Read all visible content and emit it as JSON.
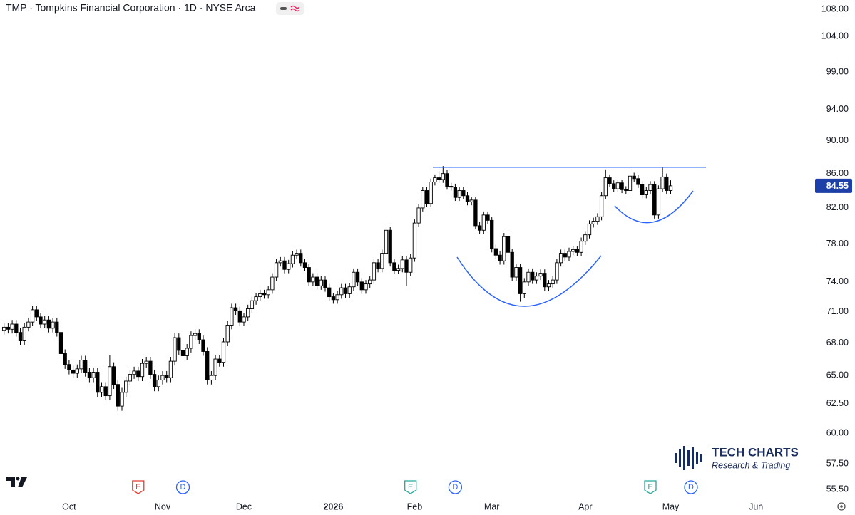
{
  "chart_data": {
    "type": "candlestick",
    "title": "TMP · Tompkins Financial Corporation · 1D · NYSE Arca",
    "log_scale": true,
    "ylim": [
      54.8,
      109.4
    ],
    "yticks": [
      {
        "value": 55.5,
        "label": "55.50"
      },
      {
        "value": 57.5,
        "label": "57.50"
      },
      {
        "value": 60,
        "label": "60.00"
      },
      {
        "value": 62.5,
        "label": "62.50"
      },
      {
        "value": 65,
        "label": "65.00"
      },
      {
        "value": 68,
        "label": "68.00"
      },
      {
        "value": 71,
        "label": "71.00"
      },
      {
        "value": 74,
        "label": "74.00"
      },
      {
        "value": 78,
        "label": "78.00"
      },
      {
        "value": 82,
        "label": "82.00"
      },
      {
        "value": 86,
        "label": "86.00"
      },
      {
        "value": 90,
        "label": "90.00"
      },
      {
        "value": 94,
        "label": "94.00"
      },
      {
        "value": 99,
        "label": "99.00"
      },
      {
        "value": 104,
        "label": "104.00"
      },
      {
        "value": 108,
        "label": "108.00"
      }
    ],
    "xlim": [
      -1,
      199
    ],
    "xticks": [
      {
        "value": 16,
        "label": "Oct"
      },
      {
        "value": 39,
        "label": "Nov"
      },
      {
        "value": 59,
        "label": "Dec"
      },
      {
        "value": 81,
        "label": "2026"
      },
      {
        "value": 101,
        "label": "Feb"
      },
      {
        "value": 120,
        "label": "Mar"
      },
      {
        "value": 143,
        "label": "Apr"
      },
      {
        "value": 164,
        "label": "May"
      },
      {
        "value": 185,
        "label": "Jun"
      }
    ],
    "up_color": "#ffffff",
    "down_color": "#000000",
    "open": [
      69.2,
      69.5,
      69.3,
      69.8,
      69.0,
      68.2,
      69.5,
      70.0,
      71.2,
      70.5,
      69.8,
      70.2,
      69.4,
      70.0,
      69.0,
      67.0,
      66.0,
      65.5,
      65.2,
      65.6,
      66.4,
      65.3,
      64.8,
      65.3,
      63.5,
      64.0,
      63.2,
      65.8,
      64.2,
      62.3,
      63.5,
      64.5,
      65.1,
      65.4,
      64.9,
      66.1,
      66.3,
      65.1,
      64.0,
      64.6,
      65.0,
      64.8,
      66.3,
      68.5,
      67.3,
      66.8,
      67.5,
      68.7,
      68.9,
      68.3,
      67.2,
      64.6,
      65.0,
      66.5,
      66.2,
      68.1,
      69.7,
      71.4,
      71.1,
      70.0,
      70.5,
      71.3,
      72.1,
      72.5,
      72.8,
      72.7,
      73.2,
      74.5,
      76.0,
      76.2,
      75.3,
      75.9,
      76.8,
      77.0,
      76.0,
      75.5,
      74.0,
      74.5,
      73.6,
      74.2,
      73.4,
      72.5,
      72.2,
      72.7,
      73.4,
      72.8,
      73.5,
      75.0,
      74.0,
      73.2,
      73.8,
      74.2,
      76.0,
      75.4,
      77.0,
      79.5,
      76.0,
      75.2,
      75.4,
      76.3,
      75.0,
      76.5,
      80.3,
      82.0,
      84.0,
      82.5,
      85.0,
      85.5,
      85.3,
      86.0,
      84.5,
      84.4,
      83.2,
      84.0,
      83.4,
      82.7,
      82.9,
      80.0,
      79.5,
      81.2,
      80.6,
      77.5,
      76.8,
      76.2,
      78.8,
      77.1,
      74.5,
      75.5,
      72.8,
      74.0,
      75.0,
      74.2,
      74.6,
      74.9,
      73.5,
      73.8,
      74.2,
      76.0,
      77.0,
      76.6,
      77.2,
      77.4,
      77.1,
      78.3,
      79.0,
      80.2,
      80.5,
      81.0,
      83.4,
      85.5,
      84.8,
      84.2,
      84.9,
      84.1,
      84.0,
      85.7,
      85.4,
      84.7,
      83.5,
      84.0,
      84.7,
      81.2,
      84.2,
      85.6,
      84.0
    ],
    "high": [
      69.9,
      69.9,
      70.2,
      70.2,
      69.4,
      69.9,
      70.4,
      71.6,
      71.6,
      70.9,
      70.6,
      70.6,
      70.4,
      70.4,
      69.4,
      67.4,
      66.4,
      65.9,
      66.0,
      66.8,
      66.8,
      65.7,
      65.7,
      65.7,
      64.4,
      64.4,
      66.9,
      66.2,
      64.6,
      63.9,
      64.9,
      65.5,
      65.8,
      65.8,
      66.5,
      66.7,
      66.7,
      65.5,
      65.0,
      65.4,
      65.4,
      66.7,
      68.9,
      68.9,
      67.7,
      67.9,
      69.1,
      69.3,
      69.3,
      68.7,
      67.6,
      65.4,
      66.9,
      66.9,
      68.5,
      70.1,
      71.8,
      71.8,
      71.5,
      70.9,
      71.7,
      72.5,
      72.9,
      73.2,
      73.2,
      73.6,
      74.9,
      76.4,
      76.6,
      76.6,
      76.3,
      77.2,
      77.4,
      77.4,
      76.4,
      75.9,
      74.9,
      74.9,
      74.6,
      74.6,
      73.8,
      72.9,
      73.1,
      73.8,
      73.8,
      73.9,
      75.4,
      75.4,
      74.4,
      74.2,
      74.6,
      76.4,
      76.4,
      77.4,
      79.9,
      79.9,
      76.4,
      75.8,
      76.7,
      76.7,
      76.9,
      80.7,
      82.4,
      84.4,
      84.4,
      85.4,
      85.9,
      86.3,
      86.9,
      86.4,
      84.9,
      84.8,
      84.4,
      84.4,
      83.8,
      83.3,
      83.3,
      80.4,
      81.6,
      81.6,
      81.0,
      77.9,
      77.2,
      79.2,
      79.2,
      77.5,
      75.9,
      75.9,
      74.4,
      75.4,
      75.4,
      75.0,
      75.3,
      75.3,
      74.2,
      74.6,
      76.4,
      77.4,
      77.4,
      77.6,
      77.8,
      77.8,
      78.7,
      79.4,
      80.6,
      80.9,
      81.4,
      83.8,
      86.5,
      85.9,
      85.2,
      85.3,
      85.3,
      84.5,
      86.9,
      86.1,
      85.8,
      85.1,
      84.4,
      85.1,
      85.1,
      84.6,
      86.8,
      86.0,
      85.2
    ],
    "low": [
      68.8,
      68.9,
      68.9,
      68.6,
      67.8,
      67.8,
      69.1,
      69.6,
      70.1,
      69.4,
      69.4,
      69.0,
      69.0,
      68.6,
      66.6,
      65.6,
      65.1,
      64.8,
      64.8,
      65.2,
      64.9,
      64.4,
      64.4,
      63.1,
      63.1,
      62.8,
      62.8,
      63.8,
      61.9,
      61.9,
      63.1,
      64.1,
      64.7,
      64.5,
      64.5,
      65.7,
      64.7,
      63.6,
      63.6,
      64.2,
      64.4,
      64.4,
      65.9,
      66.9,
      66.4,
      66.4,
      67.1,
      68.3,
      67.9,
      66.8,
      64.2,
      64.2,
      64.6,
      65.8,
      65.8,
      67.7,
      69.3,
      70.7,
      69.6,
      69.6,
      70.1,
      70.9,
      71.7,
      72.1,
      72.3,
      72.3,
      72.8,
      74.1,
      75.6,
      74.9,
      74.9,
      75.5,
      76.4,
      75.6,
      75.1,
      73.6,
      73.6,
      73.2,
      73.2,
      73.0,
      72.1,
      71.8,
      71.8,
      72.3,
      72.4,
      72.4,
      73.1,
      73.6,
      72.8,
      72.8,
      73.4,
      73.8,
      75.0,
      75.0,
      76.6,
      75.6,
      74.8,
      74.8,
      75.0,
      73.6,
      74.6,
      76.1,
      79.9,
      81.6,
      82.1,
      82.1,
      84.6,
      84.9,
      84.9,
      84.1,
      84.0,
      82.8,
      82.8,
      83.0,
      82.3,
      82.3,
      79.6,
      79.1,
      79.1,
      80.2,
      77.1,
      76.4,
      75.8,
      75.8,
      76.7,
      74.1,
      74.1,
      72.0,
      72.4,
      73.6,
      73.8,
      73.8,
      74.2,
      73.1,
      73.1,
      73.4,
      73.8,
      75.6,
      76.2,
      76.2,
      76.8,
      76.7,
      76.7,
      77.9,
      78.6,
      79.8,
      80.1,
      80.6,
      83.0,
      84.4,
      83.8,
      83.8,
      83.7,
      83.6,
      83.6,
      85.0,
      84.3,
      83.1,
      83.1,
      83.6,
      80.8,
      80.8,
      83.8,
      83.6,
      83.6
    ],
    "close": [
      69.5,
      69.3,
      69.8,
      69.0,
      68.2,
      69.5,
      70.0,
      71.2,
      70.5,
      69.8,
      70.2,
      69.4,
      70.0,
      69.0,
      67.0,
      66.0,
      65.5,
      65.2,
      65.6,
      66.4,
      65.3,
      64.8,
      65.3,
      63.5,
      64.0,
      63.2,
      65.8,
      64.2,
      62.3,
      63.5,
      64.5,
      65.1,
      65.4,
      64.9,
      66.1,
      66.3,
      65.1,
      64.0,
      64.6,
      65.0,
      64.8,
      66.3,
      68.5,
      67.3,
      66.8,
      67.5,
      68.7,
      68.9,
      68.3,
      67.2,
      64.6,
      65.0,
      66.5,
      66.2,
      68.1,
      69.7,
      71.4,
      71.1,
      70.0,
      70.5,
      71.3,
      72.1,
      72.5,
      72.8,
      72.7,
      73.2,
      74.5,
      76.0,
      76.2,
      75.3,
      75.9,
      76.8,
      77.0,
      76.0,
      75.5,
      74.0,
      74.5,
      73.6,
      74.2,
      73.4,
      72.5,
      72.2,
      72.7,
      73.4,
      72.8,
      73.5,
      75.0,
      74.0,
      73.2,
      73.8,
      74.2,
      76.0,
      75.4,
      77.0,
      79.5,
      76.0,
      75.2,
      75.4,
      76.3,
      75.0,
      76.5,
      80.3,
      82.0,
      84.0,
      82.5,
      85.0,
      85.5,
      85.3,
      86.0,
      84.5,
      84.4,
      83.2,
      84.0,
      83.4,
      82.7,
      82.9,
      80.0,
      79.5,
      81.2,
      80.6,
      77.5,
      76.8,
      76.2,
      78.8,
      77.1,
      74.5,
      75.5,
      72.8,
      74.0,
      75.0,
      74.2,
      74.6,
      74.9,
      73.5,
      73.8,
      74.2,
      76.0,
      77.0,
      76.6,
      77.2,
      77.4,
      77.1,
      78.3,
      79.0,
      80.2,
      80.5,
      81.0,
      83.4,
      85.5,
      84.8,
      84.2,
      84.9,
      84.1,
      84.0,
      85.7,
      85.4,
      84.7,
      83.5,
      84.0,
      84.7,
      81.2,
      84.2,
      85.6,
      84.0,
      84.55
    ],
    "last_price": {
      "value": 84.55,
      "label": "84.55"
    },
    "resistance": 86.75,
    "events": [
      {
        "label": "E",
        "index": 33,
        "color": "#e53935"
      },
      {
        "label": "D",
        "index": 44,
        "color": "#2962ff"
      },
      {
        "label": "E",
        "index": 100,
        "color": "#26a69a"
      },
      {
        "label": "D",
        "index": 111,
        "color": "#2962ff"
      },
      {
        "label": "E",
        "index": 159,
        "color": "#26a69a"
      },
      {
        "label": "D",
        "index": 169,
        "color": "#2962ff"
      }
    ],
    "watermark": {
      "title": "TECH CHARTS",
      "subtitle": "Research & Trading"
    }
  }
}
